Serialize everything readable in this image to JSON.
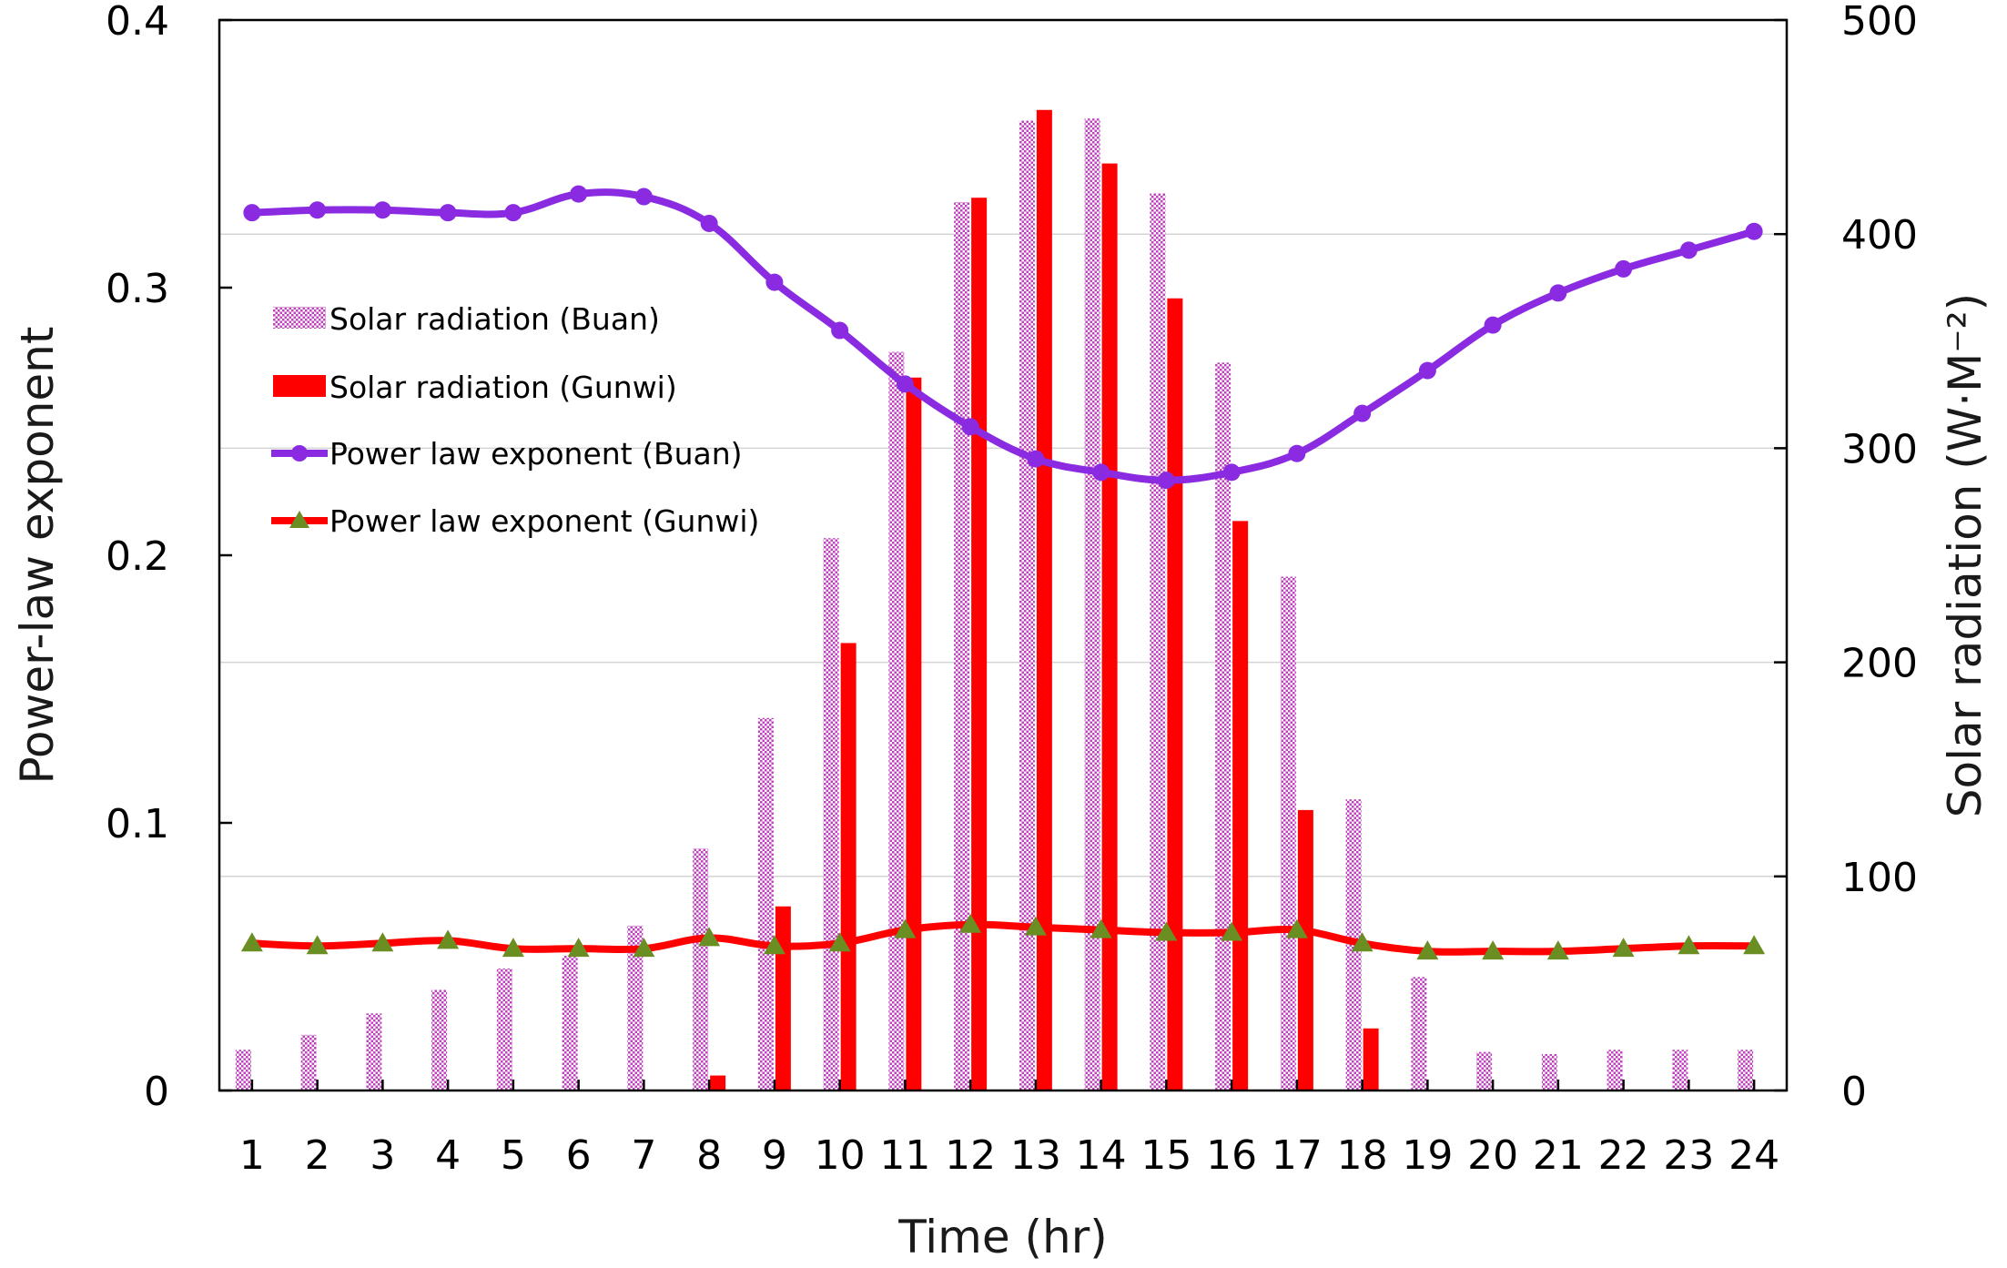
{
  "chart_data": {
    "type": "bar",
    "categories": [
      "1",
      "2",
      "3",
      "4",
      "5",
      "6",
      "7",
      "8",
      "9",
      "10",
      "11",
      "12",
      "13",
      "14",
      "15",
      "16",
      "17",
      "18",
      "19",
      "20",
      "21",
      "22",
      "23",
      "24"
    ],
    "xlabel": "Time (hr)",
    "ylabel": "Power-law exponent",
    "y2label": "Solar radiation (W·M⁻²)",
    "ylim": [
      0,
      0.4
    ],
    "y2lim": [
      0,
      500
    ],
    "yticks": [
      "0",
      "0.1",
      "0.2",
      "0.3",
      "0.4"
    ],
    "y2ticks": [
      "0",
      "100",
      "200",
      "300",
      "400",
      "500"
    ],
    "grid": "horizontal",
    "legend_position": "upper-left",
    "series": [
      {
        "name": "Solar radiation (Buan)",
        "kind": "bar",
        "axis": "right",
        "color": "#c040c0",
        "pattern": "checkered",
        "values": [
          19,
          26,
          36,
          47,
          57,
          63,
          77,
          113,
          174,
          258,
          345,
          415,
          453,
          454,
          419,
          340,
          240,
          136,
          53,
          18,
          17,
          19,
          19,
          19
        ]
      },
      {
        "name": "Solar radiation (Gunwi)",
        "kind": "bar",
        "axis": "right",
        "color": "#ff0000",
        "values": [
          0,
          0,
          0,
          0,
          0,
          0,
          0,
          7,
          86,
          209,
          333,
          417,
          458,
          433,
          370,
          266,
          131,
          29,
          0,
          0,
          0,
          0,
          0,
          0
        ]
      },
      {
        "name": "Power law exponent (Buan)",
        "kind": "line",
        "axis": "left",
        "color": "#8a2be2",
        "marker": "circle",
        "values": [
          0.328,
          0.329,
          0.329,
          0.328,
          0.328,
          0.335,
          0.334,
          0.324,
          0.302,
          0.284,
          0.264,
          0.248,
          0.236,
          0.231,
          0.228,
          0.231,
          0.238,
          0.253,
          0.269,
          0.286,
          0.298,
          0.307,
          0.314,
          0.321
        ]
      },
      {
        "name": "Power law exponent (Gunwi)",
        "kind": "line",
        "axis": "left",
        "color": "#ff0000",
        "marker": "triangle",
        "marker_color": "#6b8e23",
        "values": [
          0.055,
          0.054,
          0.055,
          0.056,
          0.053,
          0.053,
          0.053,
          0.057,
          0.054,
          0.055,
          0.06,
          0.062,
          0.061,
          0.06,
          0.059,
          0.059,
          0.06,
          0.055,
          0.052,
          0.052,
          0.052,
          0.053,
          0.054,
          0.054
        ]
      }
    ]
  }
}
